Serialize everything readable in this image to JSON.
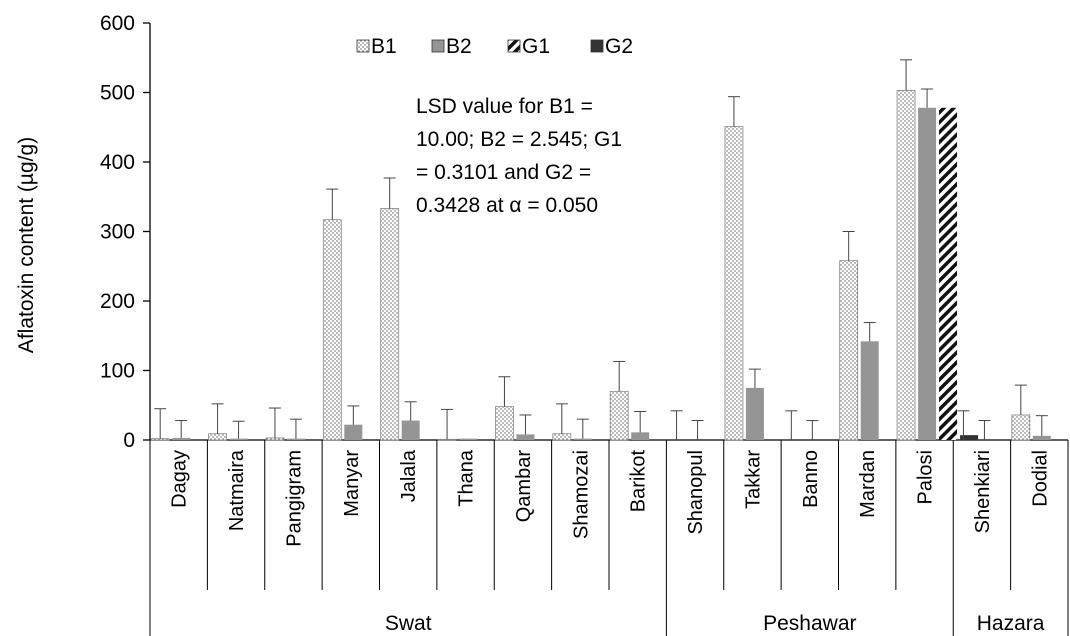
{
  "chart_data": {
    "type": "bar",
    "ylabel": "Aflatoxin content (µg/g)",
    "ylim": [
      0,
      600
    ],
    "yticks": [
      0,
      100,
      200,
      300,
      400,
      500,
      600
    ],
    "grid": false,
    "legend_position": "top",
    "categories": [
      "Dagay",
      "Natmaira",
      "Pangigram",
      "Manyar",
      "Jalala",
      "Thana",
      "Qambar",
      "Shamozai",
      "Barikot",
      "Shanopul",
      "Takkar",
      "Banno",
      "Mardan",
      "Palosi",
      "Shenkiari",
      "Dodial"
    ],
    "groups": [
      {
        "name": "Swat",
        "from": 0,
        "to": 8
      },
      {
        "name": "Peshawar",
        "from": 9,
        "to": 13
      },
      {
        "name": "Hazara",
        "from": 14,
        "to": 15
      }
    ],
    "series": [
      {
        "name": "B1",
        "pattern": "dots",
        "values": [
          2,
          9,
          3,
          317,
          333,
          1,
          48,
          9,
          70,
          0,
          451,
          0,
          258,
          503,
          0,
          36
        ],
        "errors": [
          43,
          43,
          43,
          44,
          44,
          43,
          43,
          43,
          43,
          42,
          43,
          42,
          42,
          44,
          42,
          43
        ]
      },
      {
        "name": "B2",
        "pattern": "gray",
        "values": [
          3,
          2,
          2,
          22,
          28,
          2,
          8,
          2,
          11,
          0,
          75,
          0,
          142,
          478,
          0,
          6
        ],
        "errors": [
          25,
          25,
          28,
          27,
          27,
          0,
          28,
          28,
          30,
          28,
          27,
          28,
          27,
          27,
          28,
          29
        ]
      },
      {
        "name": "G1",
        "pattern": "hatch",
        "values": [
          0,
          0,
          0,
          0,
          0,
          0,
          0,
          0,
          0,
          0,
          0,
          0,
          0,
          478,
          0,
          0
        ],
        "errors": [
          0,
          0,
          0,
          0,
          0,
          0,
          0,
          0,
          0,
          0,
          0,
          0,
          0,
          0,
          0,
          0
        ]
      },
      {
        "name": "G2",
        "pattern": "dark",
        "values": [
          0,
          0,
          0,
          0,
          0,
          0,
          0,
          0,
          0,
          0,
          0,
          0,
          0,
          7,
          0,
          0
        ],
        "errors": [
          0,
          0,
          0,
          0,
          0,
          0,
          0,
          0,
          0,
          0,
          0,
          0,
          0,
          0,
          0,
          0
        ]
      }
    ],
    "annotation": [
      "LSD value for B1 =",
      "10.00; B2 = 2.545; G1",
      "= 0.3101 and G2 =",
      "0.3428 at α = 0.050"
    ]
  },
  "colors": {
    "axis": "#000000",
    "b1_fill": "#ffffff",
    "b1_dots": "#555555",
    "b2_fill": "#959595",
    "g1_stripe": "#111111",
    "g2_fill": "#333333",
    "error_bar": "#444444"
  }
}
